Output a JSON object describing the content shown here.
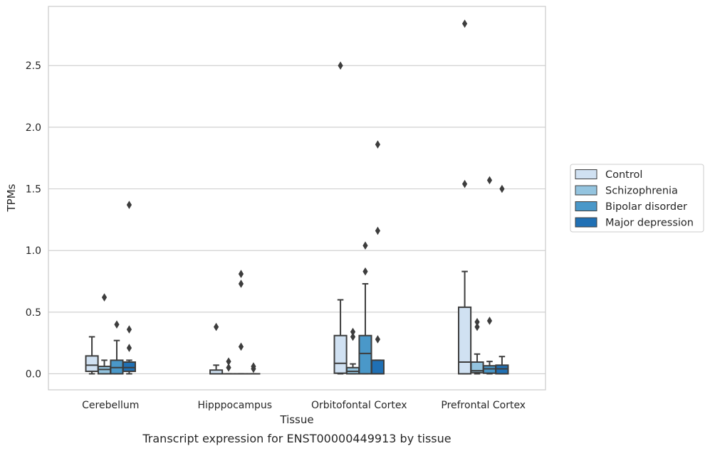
{
  "chart_data": {
    "type": "boxplot",
    "xlabel": "Tissue",
    "ylabel": "TPMs",
    "caption": "Transcript expression for ENST00000449913 by tissue",
    "ylim": [
      -0.13,
      2.98
    ],
    "yticks": [
      "0.0",
      "0.5",
      "1.0",
      "1.5",
      "2.0",
      "2.5"
    ],
    "grid": "horizontal",
    "legend_position": "right",
    "categories": [
      "Cerebellum",
      "Hipppocampus",
      "Orbitofontal Cortex",
      "Prefrontal Cortex"
    ],
    "series": [
      {
        "name": "Control",
        "color": "#d0e1f2",
        "boxes": [
          {
            "whisker_low": 0.0,
            "q1": 0.02,
            "median": 0.07,
            "q3": 0.145,
            "whisker_high": 0.3,
            "outliers": []
          },
          {
            "whisker_low": 0.0,
            "q1": 0.0,
            "median": 0.0,
            "q3": 0.03,
            "whisker_high": 0.07,
            "outliers": [
              0.38
            ]
          },
          {
            "whisker_low": 0.0,
            "q1": 0.005,
            "median": 0.085,
            "q3": 0.31,
            "whisker_high": 0.6,
            "outliers": [
              2.5
            ]
          },
          {
            "whisker_low": 0.0,
            "q1": 0.0,
            "median": 0.095,
            "q3": 0.54,
            "whisker_high": 0.83,
            "outliers": [
              1.54,
              2.84
            ]
          }
        ]
      },
      {
        "name": "Schizophrenia",
        "color": "#94c4df",
        "boxes": [
          {
            "whisker_low": 0.0,
            "q1": 0.0,
            "median": 0.035,
            "q3": 0.06,
            "whisker_high": 0.11,
            "outliers": [
              0.62
            ]
          },
          {
            "whisker_low": 0.0,
            "q1": 0.0,
            "median": 0.0,
            "q3": 0.0,
            "whisker_high": 0.0,
            "outliers": [
              0.05,
              0.1
            ]
          },
          {
            "whisker_low": 0.0,
            "q1": 0.0,
            "median": 0.02,
            "q3": 0.05,
            "whisker_high": 0.08,
            "outliers": [
              0.3,
              0.34
            ]
          },
          {
            "whisker_low": 0.0,
            "q1": 0.01,
            "median": 0.025,
            "q3": 0.095,
            "whisker_high": 0.16,
            "outliers": [
              0.38,
              0.42
            ]
          }
        ]
      },
      {
        "name": "Bipolar disorder",
        "color": "#4a98c9",
        "boxes": [
          {
            "whisker_low": 0.0,
            "q1": 0.0,
            "median": 0.05,
            "q3": 0.11,
            "whisker_high": 0.27,
            "outliers": [
              0.4
            ]
          },
          {
            "whisker_low": 0.0,
            "q1": 0.0,
            "median": 0.0,
            "q3": 0.0,
            "whisker_high": 0.0,
            "outliers": [
              0.22,
              0.73,
              0.81
            ]
          },
          {
            "whisker_low": 0.0,
            "q1": 0.0,
            "median": 0.165,
            "q3": 0.31,
            "whisker_high": 0.73,
            "outliers": [
              0.83,
              1.04
            ]
          },
          {
            "whisker_low": 0.0,
            "q1": 0.005,
            "median": 0.04,
            "q3": 0.065,
            "whisker_high": 0.1,
            "outliers": [
              0.43,
              1.57
            ]
          }
        ]
      },
      {
        "name": "Major depression",
        "color": "#2070b4",
        "boxes": [
          {
            "whisker_low": 0.0,
            "q1": 0.02,
            "median": 0.05,
            "q3": 0.095,
            "whisker_high": 0.11,
            "outliers": [
              0.21,
              0.36,
              1.37
            ]
          },
          {
            "whisker_low": 0.0,
            "q1": 0.0,
            "median": 0.0,
            "q3": 0.0,
            "whisker_high": 0.0,
            "outliers": [
              0.04,
              0.06
            ]
          },
          {
            "whisker_low": 0.0,
            "q1": 0.0,
            "median": 0.0,
            "q3": 0.11,
            "whisker_high": 0.11,
            "outliers": [
              0.28,
              1.16,
              1.86
            ]
          },
          {
            "whisker_low": 0.0,
            "q1": 0.0,
            "median": 0.04,
            "q3": 0.07,
            "whisker_high": 0.14,
            "outliers": [
              1.5
            ]
          }
        ]
      }
    ]
  }
}
